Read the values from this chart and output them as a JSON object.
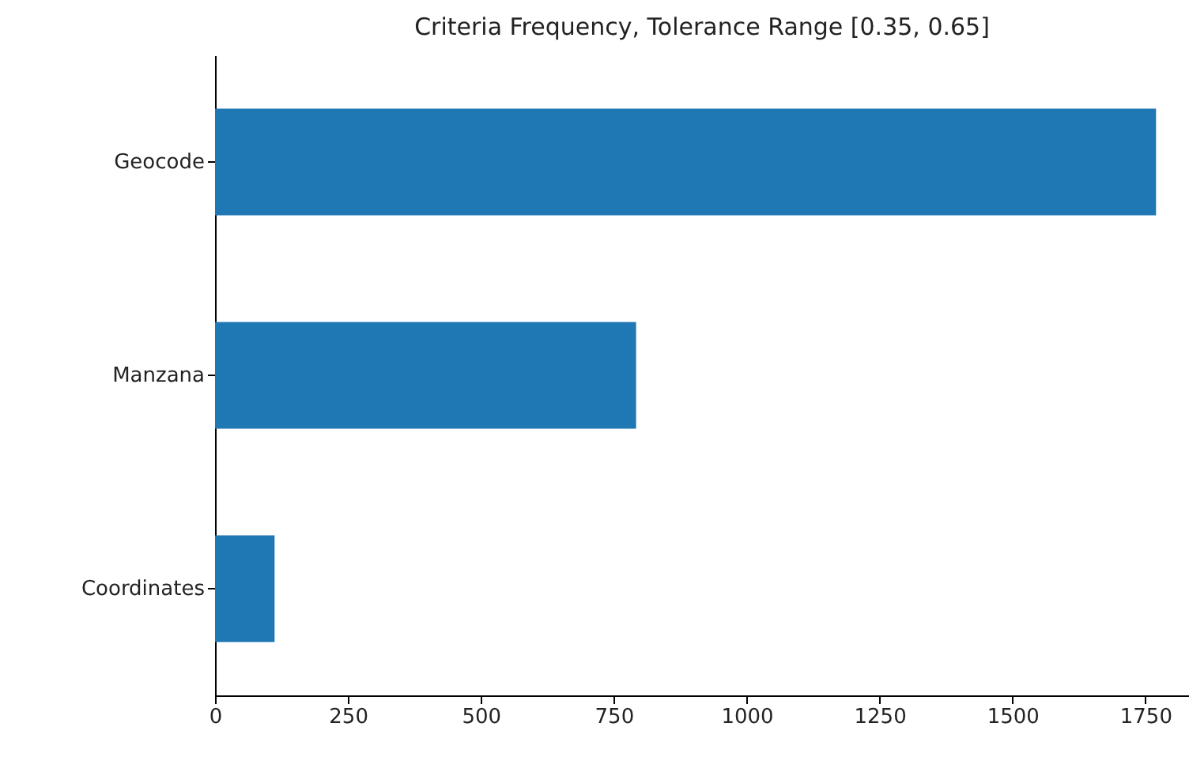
{
  "chart_data": {
    "type": "bar",
    "orientation": "horizontal",
    "title": "Criteria Frequency, Tolerance Range [0.35, 0.65]",
    "categories": [
      "Geocode",
      "Manzana",
      "Coordinates"
    ],
    "values": [
      1770,
      792,
      112
    ],
    "color": "#1f77b4",
    "xlim": [
      0,
      1832
    ],
    "xticks": [
      0,
      250,
      500,
      750,
      1000,
      1250,
      1500,
      1750
    ],
    "grid": false
  }
}
